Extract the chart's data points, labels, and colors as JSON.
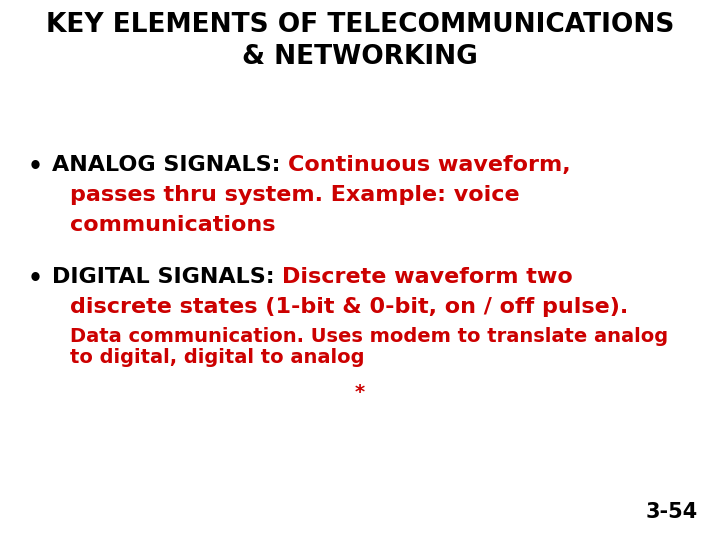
{
  "background_color": "#ffffff",
  "title_line1": "KEY ELEMENTS OF TELECOMMUNICATIONS",
  "title_line2": "& NETWORKING",
  "title_color": "#000000",
  "title_fontsize": 19,
  "title_fontweight": "bold",
  "bullet1_label": "ANALOG SIGNALS: ",
  "bullet2_label": "DIGITAL SIGNALS: ",
  "bullet1_red_line1": "Continuous waveform,",
  "bullet1_red_line2": "passes thru system. Example: voice",
  "bullet1_red_line3": "communications",
  "bullet2_red_line1": "Discrete waveform two",
  "bullet2_red_line2": "discrete states (1-bit & 0-bit, on / off pulse).",
  "bullet2_red_line3": "Data communication. Uses modem to translate analog",
  "bullet2_red_line4": "to digital, digital to analog",
  "label_color": "#000000",
  "red_color": "#cc0000",
  "bullet_fontsize": 16,
  "small_fontsize": 14,
  "bullet_fontweight": "bold",
  "asterisk": "*",
  "asterisk_color": "#cc0000",
  "asterisk_fontsize": 14,
  "page_number": "3-54",
  "page_number_color": "#000000",
  "page_number_fontsize": 15,
  "fig_width": 7.2,
  "fig_height": 5.4,
  "dpi": 100
}
